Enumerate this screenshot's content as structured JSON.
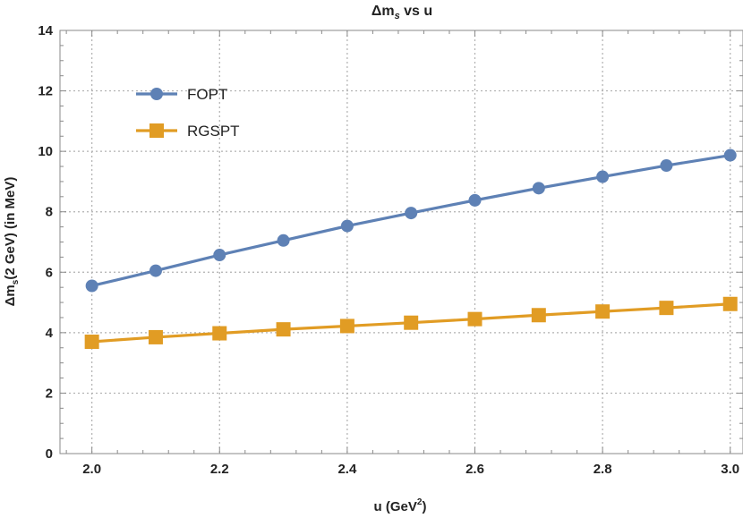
{
  "chart_data": {
    "type": "line",
    "title": "Δm_s vs u",
    "title_parts": {
      "main": "Δm",
      "sub": "s",
      "rest": " vs u"
    },
    "xlabel": "u (GeV²)",
    "xlabel_parts": {
      "main": "u (GeV",
      "sup": "2",
      "rest": ")"
    },
    "ylabel": "Δm_s(2 GeV) (in MeV)",
    "ylabel_parts": {
      "main": "Δm",
      "sub": "s",
      "rest": "(2 GeV) (in MeV)"
    },
    "xlim": [
      1.95,
      3.02
    ],
    "ylim": [
      0,
      14
    ],
    "x_ticks": [
      2.0,
      2.2,
      2.4,
      2.6,
      2.8,
      3.0
    ],
    "x_tick_labels": [
      "2.0",
      "2.2",
      "2.4",
      "2.6",
      "2.8",
      "3.0"
    ],
    "y_ticks": [
      0,
      2,
      4,
      6,
      8,
      10,
      12,
      14
    ],
    "y_tick_labels": [
      "0",
      "2",
      "4",
      "6",
      "8",
      "10",
      "12",
      "14"
    ],
    "grid": true,
    "legend_position": "top-left",
    "x": [
      2.0,
      2.1,
      2.2,
      2.3,
      2.4,
      2.5,
      2.6,
      2.7,
      2.8,
      2.9,
      3.0
    ],
    "series": [
      {
        "name": "FOPT",
        "color": "#5e81b5",
        "marker": "circle",
        "values": [
          5.55,
          6.05,
          6.57,
          7.05,
          7.53,
          7.96,
          8.38,
          8.78,
          9.16,
          9.53,
          9.87
        ]
      },
      {
        "name": "RGSPT",
        "color": "#e19c24",
        "marker": "square",
        "values": [
          3.7,
          3.85,
          3.98,
          4.11,
          4.22,
          4.33,
          4.45,
          4.58,
          4.7,
          4.82,
          4.95
        ]
      }
    ]
  }
}
